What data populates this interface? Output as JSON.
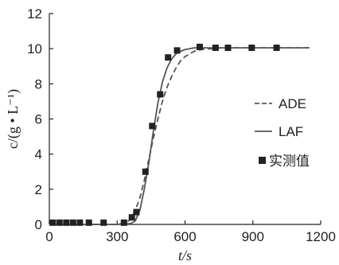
{
  "chart_data": {
    "type": "line",
    "xlabel": "t/s",
    "ylabel": "c/(g • L⁻¹)",
    "xlim": [
      0,
      1200
    ],
    "ylim": [
      0,
      12
    ],
    "xticks": [
      0,
      300,
      600,
      900,
      1200
    ],
    "yticks": [
      0,
      2,
      4,
      6,
      8,
      10,
      12
    ],
    "grid": false,
    "legend_position": "right",
    "series": [
      {
        "name": "ADE",
        "style": "dashed",
        "color": "#555555",
        "x": [
          0,
          300,
          340,
          360,
          380,
          400,
          420,
          440,
          460,
          480,
          500,
          520,
          540,
          560,
          580,
          600,
          640,
          680,
          720,
          760,
          800,
          900,
          1000,
          1150
        ],
        "y": [
          0,
          0,
          0.1,
          0.3,
          0.8,
          1.5,
          2.5,
          3.7,
          4.9,
          6.0,
          7.0,
          7.8,
          8.4,
          8.9,
          9.3,
          9.55,
          9.85,
          9.97,
          10.0,
          10.05,
          10.05,
          10.05,
          10.05,
          10.05
        ]
      },
      {
        "name": "LAF",
        "style": "solid",
        "color": "#555555",
        "x": [
          0,
          300,
          360,
          380,
          400,
          420,
          440,
          460,
          480,
          500,
          520,
          540,
          560,
          580,
          600,
          620,
          640,
          680,
          720,
          800,
          900,
          1000,
          1150
        ],
        "y": [
          0,
          0,
          0.05,
          0.2,
          0.8,
          2.0,
          3.5,
          5.3,
          6.9,
          8.1,
          8.9,
          9.4,
          9.7,
          9.85,
          9.95,
          10.0,
          10.05,
          10.05,
          10.05,
          10.05,
          10.05,
          10.05,
          10.05
        ]
      },
      {
        "name": "实测值",
        "style": "marker",
        "marker": "square",
        "color": "#222222",
        "x": [
          15,
          45,
          75,
          105,
          135,
          175,
          240,
          330,
          365,
          385,
          425,
          455,
          490,
          525,
          565,
          665,
          735,
          790,
          895,
          1005
        ],
        "y": [
          0.1,
          0.1,
          0.1,
          0.1,
          0.1,
          0.1,
          0.1,
          0.1,
          0.4,
          0.7,
          3.0,
          5.6,
          7.4,
          9.5,
          9.9,
          10.1,
          10.05,
          10.05,
          10.05,
          10.05
        ]
      }
    ]
  }
}
